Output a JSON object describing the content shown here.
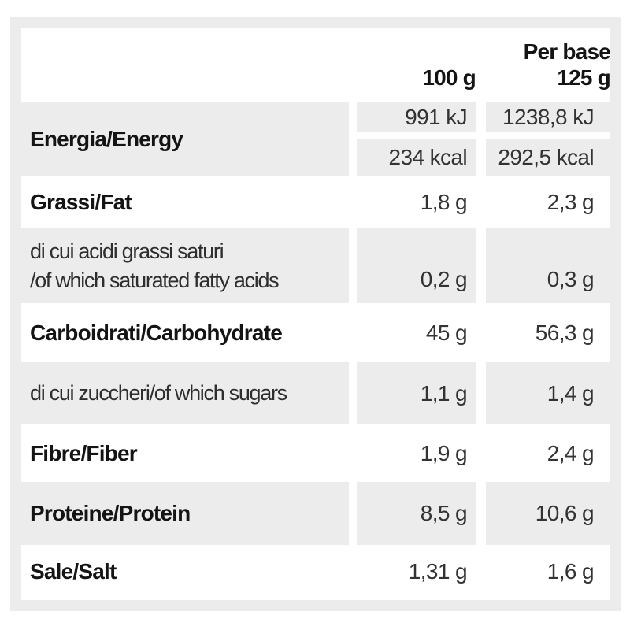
{
  "colors": {
    "shade": "#ececec",
    "frame": "#ececec",
    "background": "#ffffff",
    "label_text": "#141414",
    "value_text": "#333333"
  },
  "table": {
    "header": {
      "col_100": "100 g",
      "col_base_line1": "Per base",
      "col_base_line2": "125 g"
    },
    "rows": [
      {
        "id": "energia",
        "label1": "Energia/Energy",
        "v100_kj": "991 kJ",
        "v100_kcal": "234 kcal",
        "v125_kj": "1238,8 kJ",
        "v125_kcal": "292,5 kcal"
      },
      {
        "id": "grassi",
        "label1": "Grassi/Fat",
        "v100": "1,8 g",
        "v125": "2,3 g"
      },
      {
        "id": "grassi-saturi",
        "label1": "di cui acidi grassi saturi",
        "label2": "/of which saturated fatty acids",
        "v100": "0,2 g",
        "v125": "0,3 g"
      },
      {
        "id": "carboidrati",
        "label1": "Carboidrati/Carbohydrate",
        "v100": "45 g",
        "v125": "56,3 g"
      },
      {
        "id": "zuccheri",
        "label1": "di cui zuccheri/of which sugars",
        "v100": "1,1 g",
        "v125": "1,4 g"
      },
      {
        "id": "fibre",
        "label1": "Fibre/Fiber",
        "v100": "1,9 g",
        "v125": "2,4 g"
      },
      {
        "id": "proteine",
        "label1": "Proteine/Protein",
        "v100": "8,5 g",
        "v125": "10,6 g"
      },
      {
        "id": "sale",
        "label1": "Sale/Salt",
        "v100": "1,31 g",
        "v125": "1,6 g"
      }
    ]
  }
}
